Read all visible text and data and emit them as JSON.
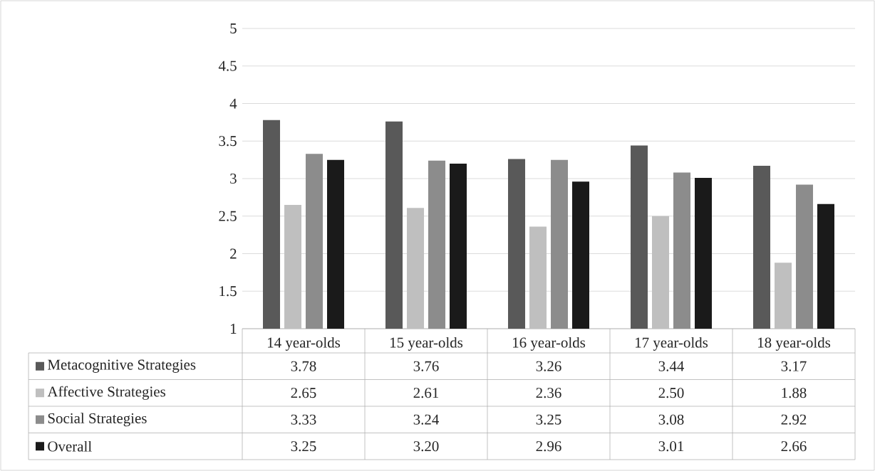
{
  "chart_data": {
    "type": "bar",
    "categories": [
      "14 year-olds",
      "15 year-olds",
      "16 year-olds",
      "17 year-olds",
      "18 year-olds"
    ],
    "series": [
      {
        "name": "Metacognitive Strategies",
        "color": "#595959",
        "values": [
          3.78,
          3.76,
          3.26,
          3.44,
          3.17
        ],
        "value_labels": [
          "3.78",
          "3.76",
          "3.26",
          "3.44",
          "3.17"
        ]
      },
      {
        "name": "Affective Strategies",
        "color": "#bfbfbf",
        "values": [
          2.65,
          2.61,
          2.36,
          2.5,
          1.88
        ],
        "value_labels": [
          "2.65",
          "2.61",
          "2.36",
          "2.50",
          "1.88"
        ]
      },
      {
        "name": "Social Strategies",
        "color": "#8c8c8c",
        "values": [
          3.33,
          3.24,
          3.25,
          3.08,
          2.92
        ],
        "value_labels": [
          "3.33",
          "3.24",
          "3.25",
          "3.08",
          "2.92"
        ]
      },
      {
        "name": "Overall",
        "color": "#1a1a1a",
        "values": [
          3.25,
          3.2,
          2.96,
          3.01,
          2.66
        ],
        "value_labels": [
          "3.25",
          "3.20",
          "2.96",
          "3.01",
          "2.66"
        ]
      }
    ],
    "ylim": [
      1,
      5
    ],
    "yticks": [
      1,
      1.5,
      2,
      2.5,
      3,
      3.5,
      4,
      4.5,
      5
    ],
    "grid": "y",
    "legend": "bottom"
  }
}
